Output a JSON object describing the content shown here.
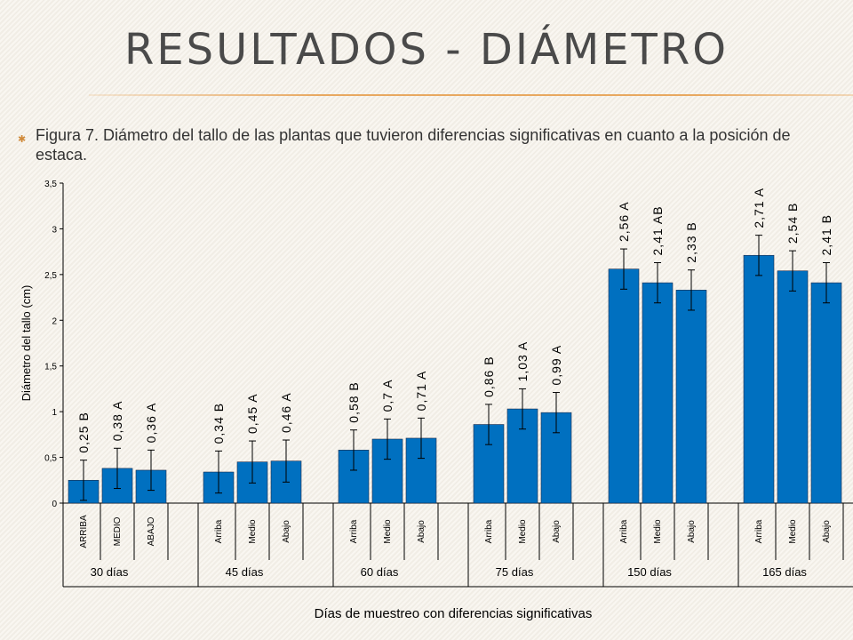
{
  "slide": {
    "title": "RESULTADOS - DIÁMETRO",
    "caption_marker": "✱",
    "caption": "Figura 7. Diámetro del tallo de las plantas que tuvieron diferencias significativas en cuanto a la posición de estaca."
  },
  "chart_data": {
    "type": "bar",
    "ylabel": "Diámetro del tallo (cm)",
    "xlabel": "Días de muestreo con diferencias significativas",
    "ylim": [
      0,
      3.5
    ],
    "yticks": [
      "0",
      "0,5",
      "1",
      "1,5",
      "2",
      "2,5",
      "3",
      "3,5"
    ],
    "grid": false,
    "bar_color": "#0070c0",
    "groups": [
      {
        "label": "30 días",
        "bars": [
          {
            "category": "ARRIBA",
            "value": 0.25,
            "label": "0,25",
            "letter": "B",
            "err": 0.22
          },
          {
            "category": "MEDIO",
            "value": 0.38,
            "label": "0,38",
            "letter": "A",
            "err": 0.22
          },
          {
            "category": "ABAJO",
            "value": 0.36,
            "label": "0,36",
            "letter": "A",
            "err": 0.22
          }
        ]
      },
      {
        "label": "45 días",
        "bars": [
          {
            "category": "Arriba",
            "value": 0.34,
            "label": "0,34",
            "letter": "B",
            "err": 0.23
          },
          {
            "category": "Medio",
            "value": 0.45,
            "label": "0,45",
            "letter": "A",
            "err": 0.23
          },
          {
            "category": "Abajo",
            "value": 0.46,
            "label": "0,46",
            "letter": "A",
            "err": 0.23
          }
        ]
      },
      {
        "label": "60 días",
        "bars": [
          {
            "category": "Arriba",
            "value": 0.58,
            "label": "0,58",
            "letter": "B",
            "err": 0.22
          },
          {
            "category": "Medio",
            "value": 0.7,
            "label": "0,7",
            "letter": "A",
            "err": 0.22
          },
          {
            "category": "Abajo",
            "value": 0.71,
            "label": "0,71",
            "letter": "A",
            "err": 0.22
          }
        ]
      },
      {
        "label": "75 días",
        "bars": [
          {
            "category": "Arriba",
            "value": 0.86,
            "label": "0,86",
            "letter": "B",
            "err": 0.22
          },
          {
            "category": "Medio",
            "value": 1.03,
            "label": "1,03",
            "letter": "A",
            "err": 0.22
          },
          {
            "category": "Abajo",
            "value": 0.99,
            "label": "0,99",
            "letter": "A",
            "err": 0.22
          }
        ]
      },
      {
        "label": "150 días",
        "bars": [
          {
            "category": "Arriba",
            "value": 2.56,
            "label": "2,56",
            "letter": "A",
            "err": 0.22
          },
          {
            "category": "Medio",
            "value": 2.41,
            "label": "2,41",
            "letter": "AB",
            "err": 0.22
          },
          {
            "category": "Abajo",
            "value": 2.33,
            "label": "2,33",
            "letter": "B",
            "err": 0.22
          }
        ]
      },
      {
        "label": "165 días",
        "bars": [
          {
            "category": "Arriba",
            "value": 2.71,
            "label": "2,71",
            "letter": "A",
            "err": 0.22
          },
          {
            "category": "Medio",
            "value": 2.54,
            "label": "2,54",
            "letter": "B",
            "err": 0.22
          },
          {
            "category": "Abajo",
            "value": 2.41,
            "label": "2,41",
            "letter": "B",
            "err": 0.22
          }
        ]
      }
    ]
  }
}
